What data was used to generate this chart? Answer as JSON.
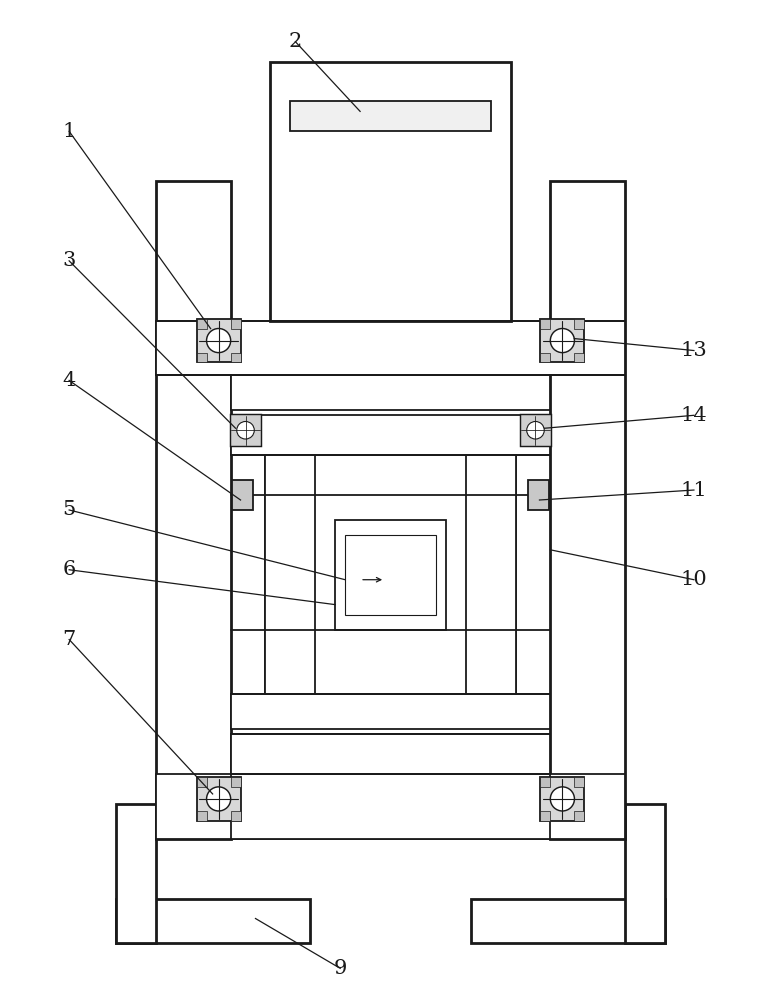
{
  "bg_color": "#ffffff",
  "line_color": "#1a1a1a",
  "lw_thin": 0.8,
  "lw_med": 1.3,
  "lw_thick": 2.0,
  "fig_width": 7.81,
  "fig_height": 10.0
}
